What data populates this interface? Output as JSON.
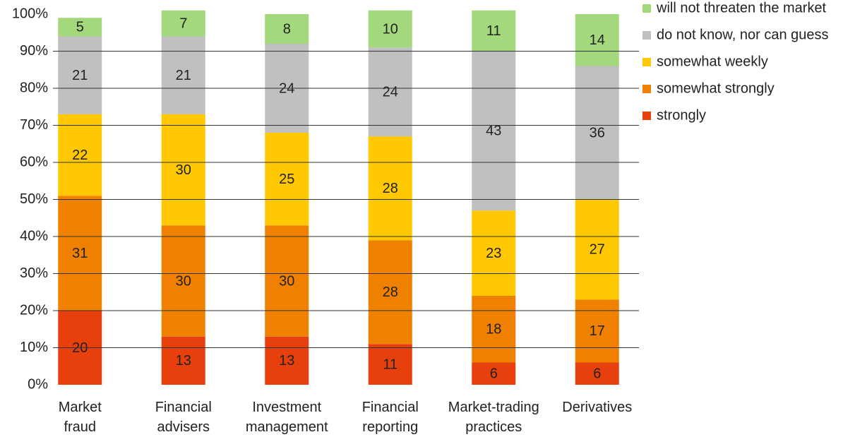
{
  "chart_data": {
    "type": "stacked_bar",
    "categories": [
      "Market fraud",
      "Financial advisers",
      "Investment management",
      "Financial reporting",
      "Market-trading practices",
      "Derivatives"
    ],
    "series": [
      {
        "name": "strongly",
        "color": "#e8400c",
        "values": [
          20,
          13,
          13,
          11,
          6,
          6
        ]
      },
      {
        "name": "somewhat strongly",
        "color": "#f08000",
        "values": [
          31,
          30,
          30,
          28,
          18,
          17
        ]
      },
      {
        "name": "somewhat weekly",
        "color": "#ffc800",
        "values": [
          22,
          30,
          25,
          28,
          23,
          27
        ]
      },
      {
        "name": "do not know, nor can guess",
        "color": "#c0c0c0",
        "values": [
          21,
          21,
          24,
          24,
          43,
          36
        ]
      },
      {
        "name": "will not threaten the market",
        "color": "#a4d87c",
        "values": [
          5,
          7,
          8,
          10,
          11,
          14
        ]
      }
    ],
    "ylim": [
      0,
      100
    ],
    "yticks": [
      {
        "value": 0,
        "label": "0%"
      },
      {
        "value": 10,
        "label": "10%"
      },
      {
        "value": 20,
        "label": "20%"
      },
      {
        "value": 30,
        "label": "30%"
      },
      {
        "value": 40,
        "label": "40%"
      },
      {
        "value": 50,
        "label": "50%"
      },
      {
        "value": 60,
        "label": "60%"
      },
      {
        "value": 70,
        "label": "70%"
      },
      {
        "value": 80,
        "label": "80%"
      },
      {
        "value": 90,
        "label": "90%"
      },
      {
        "value": 100,
        "label": "100%"
      }
    ],
    "grid": true,
    "legend": "right"
  }
}
